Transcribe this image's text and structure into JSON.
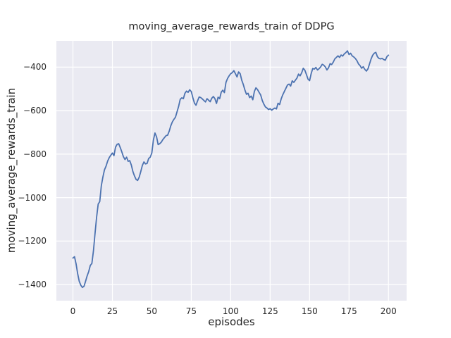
{
  "chart_data": {
    "type": "line",
    "title": "moving_average_rewards_train of DDPG",
    "xlabel": "episodes",
    "ylabel": "moving_average_rewards_train",
    "x_ticks": [
      0,
      25,
      50,
      75,
      100,
      125,
      150,
      175,
      200
    ],
    "y_ticks": [
      -400,
      -600,
      -800,
      -1000,
      -1200,
      -1400
    ],
    "xlim": [
      -10.5,
      211.5
    ],
    "ylim": [
      -1474,
      -279
    ],
    "grid": true,
    "legend_position": "none",
    "style": {
      "figure_background": "#ffffff",
      "axes_background": "#eaeaf2",
      "grid_color": "#ffffff",
      "line_color": "#4c72b0",
      "text_color": "#262626",
      "line_width": 1.8
    },
    "series": [
      {
        "x_start": 0,
        "x_step": 1,
        "values": [
          -1278,
          -1272,
          -1305,
          -1350,
          -1385,
          -1403,
          -1413,
          -1408,
          -1385,
          -1360,
          -1340,
          -1312,
          -1303,
          -1245,
          -1165,
          -1090,
          -1030,
          -1018,
          -945,
          -905,
          -872,
          -855,
          -832,
          -816,
          -805,
          -795,
          -807,
          -768,
          -755,
          -752,
          -770,
          -790,
          -812,
          -825,
          -814,
          -833,
          -830,
          -850,
          -880,
          -900,
          -916,
          -921,
          -906,
          -880,
          -852,
          -836,
          -845,
          -843,
          -820,
          -814,
          -795,
          -735,
          -703,
          -720,
          -756,
          -752,
          -745,
          -733,
          -724,
          -715,
          -713,
          -695,
          -670,
          -652,
          -640,
          -630,
          -605,
          -580,
          -548,
          -541,
          -545,
          -520,
          -510,
          -516,
          -504,
          -512,
          -540,
          -565,
          -575,
          -555,
          -537,
          -540,
          -546,
          -553,
          -560,
          -545,
          -552,
          -559,
          -543,
          -535,
          -545,
          -567,
          -538,
          -545,
          -515,
          -506,
          -517,
          -470,
          -452,
          -440,
          -430,
          -425,
          -416,
          -430,
          -445,
          -422,
          -430,
          -460,
          -480,
          -505,
          -525,
          -520,
          -540,
          -533,
          -550,
          -512,
          -495,
          -503,
          -516,
          -528,
          -553,
          -570,
          -583,
          -588,
          -595,
          -591,
          -598,
          -592,
          -588,
          -592,
          -566,
          -572,
          -546,
          -527,
          -512,
          -497,
          -482,
          -478,
          -487,
          -463,
          -470,
          -460,
          -450,
          -432,
          -440,
          -426,
          -405,
          -414,
          -434,
          -455,
          -462,
          -430,
          -406,
          -409,
          -401,
          -413,
          -407,
          -399,
          -387,
          -391,
          -399,
          -413,
          -403,
          -384,
          -388,
          -377,
          -362,
          -355,
          -348,
          -355,
          -344,
          -349,
          -339,
          -333,
          -325,
          -342,
          -336,
          -348,
          -353,
          -360,
          -370,
          -385,
          -393,
          -405,
          -398,
          -410,
          -418,
          -408,
          -385,
          -362,
          -345,
          -336,
          -332,
          -352,
          -360,
          -362,
          -360,
          -365,
          -368,
          -352,
          -345
        ]
      }
    ]
  }
}
